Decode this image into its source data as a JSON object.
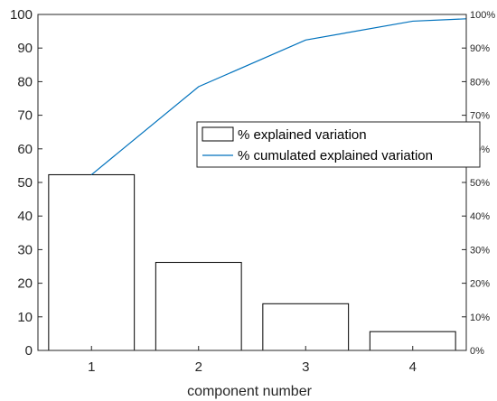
{
  "chart_data": {
    "type": "bar",
    "title": "",
    "xlabel": "component number",
    "ylabel": "",
    "categories": [
      "1",
      "2",
      "3",
      "4"
    ],
    "ylim": [
      0,
      100
    ],
    "y_ticks": [
      "0",
      "10",
      "20",
      "30",
      "40",
      "50",
      "60",
      "70",
      "80",
      "90",
      "100"
    ],
    "y2lim": [
      0,
      100
    ],
    "y2_ticks": [
      "0%",
      "10%",
      "20%",
      "30%",
      "40%",
      "50%",
      "60%",
      "70%",
      "80%",
      "90%",
      "100%"
    ],
    "series": [
      {
        "name": "% explained variation",
        "type": "bar",
        "values": [
          52.3,
          26.2,
          13.9,
          5.6
        ],
        "color": "#ffffff",
        "edge_color": "#000000"
      },
      {
        "name": "% cumulated explained variation",
        "type": "line",
        "x": [
          1,
          2,
          3,
          4,
          4.5
        ],
        "values": [
          52.3,
          78.5,
          92.4,
          98.0,
          98.7
        ],
        "color": "#0072bd"
      }
    ],
    "legend_position": "center-right",
    "grid": false
  }
}
